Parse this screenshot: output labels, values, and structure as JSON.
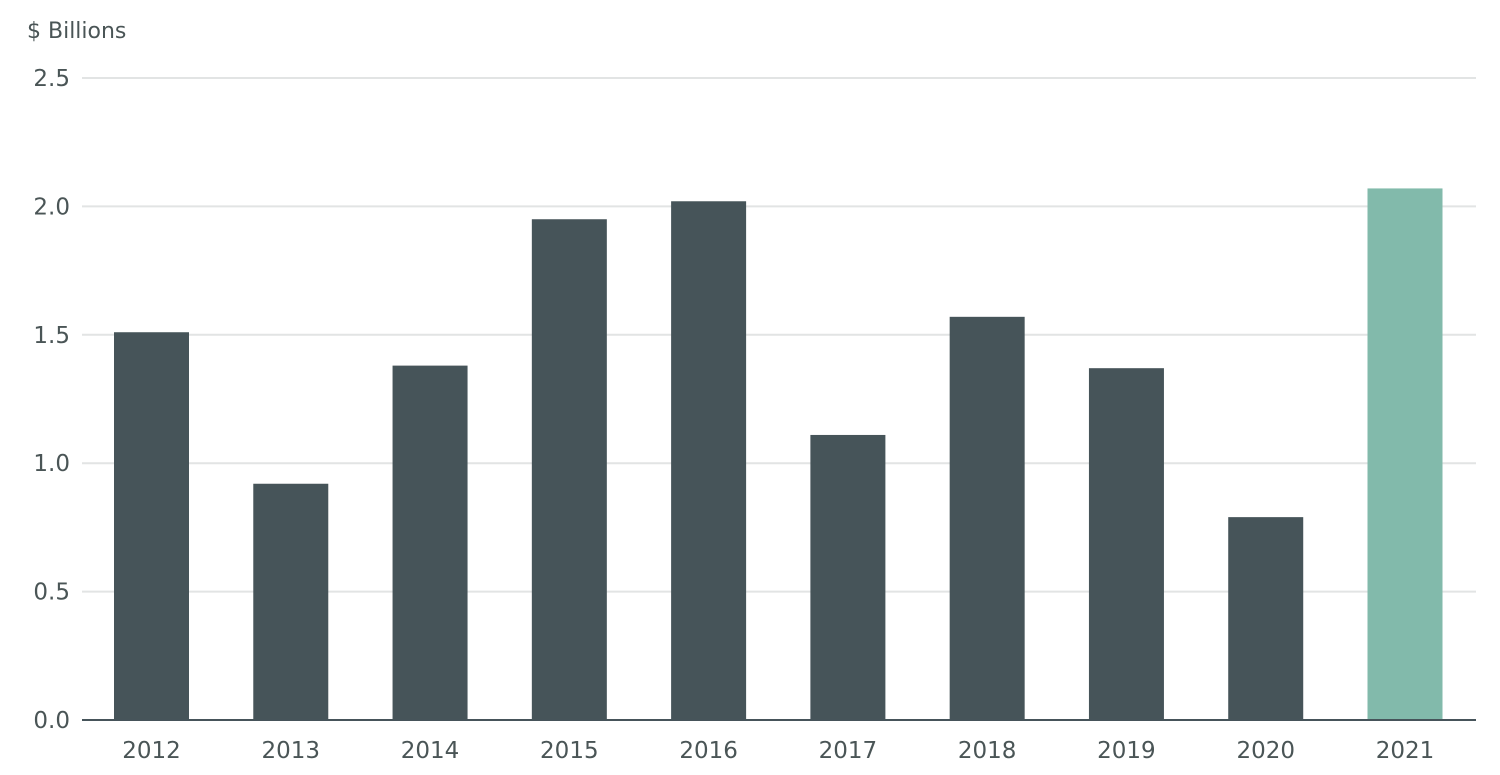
{
  "chart_data": {
    "type": "bar",
    "ylabel": "$ Billions",
    "categories": [
      "2012",
      "2013",
      "2014",
      "2015",
      "2016",
      "2017",
      "2018",
      "2019",
      "2020",
      "2021"
    ],
    "values": [
      1.51,
      0.92,
      1.38,
      1.95,
      2.02,
      1.11,
      1.57,
      1.37,
      0.79,
      2.07
    ],
    "ylim": [
      0,
      2.5
    ],
    "yticks": [
      "0.0",
      "0.5",
      "1.0",
      "1.5",
      "2.0",
      "2.5"
    ],
    "grid": true,
    "legend": "none",
    "colors": {
      "bar": "#465459",
      "highlight": "#82baab",
      "grid": "#e2e4e4",
      "axis": "#46545a",
      "text": "#4a5556"
    },
    "highlight_category": "2021"
  }
}
